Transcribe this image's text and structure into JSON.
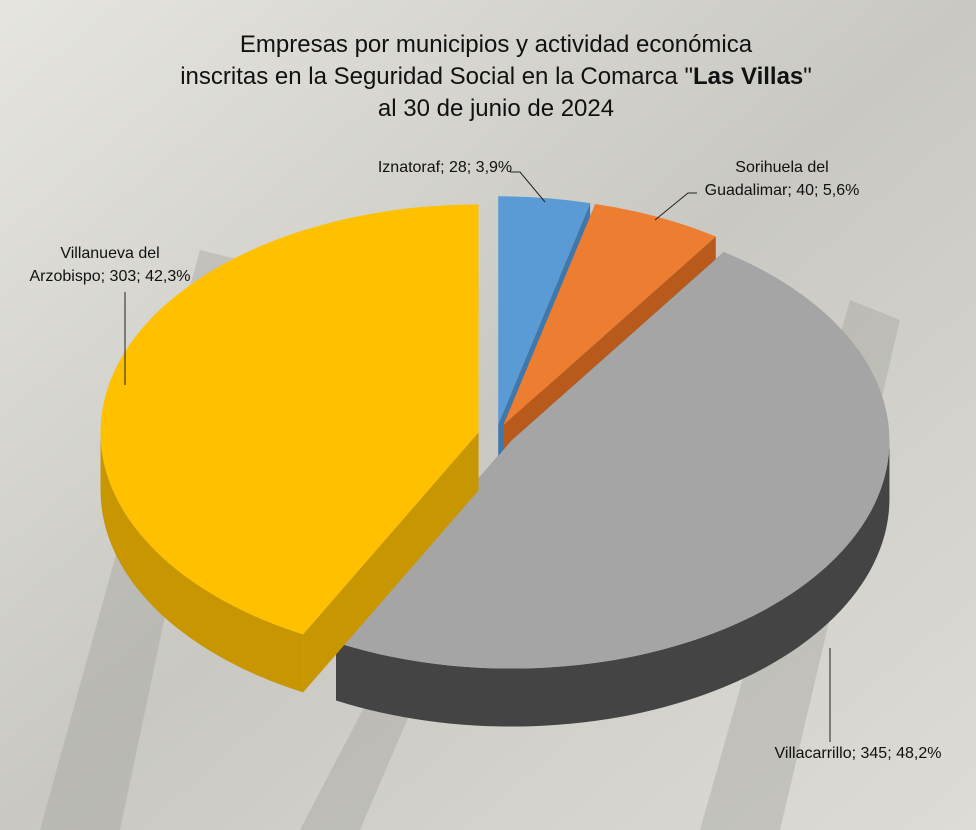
{
  "chart_data": {
    "type": "pie3d",
    "title": {
      "line1": "Empresas por municipios y actividad económica",
      "line2": "inscritas en la Seguridad Social en la Comarca \"",
      "highlight": "Las Villas",
      "line2_end": "\"",
      "line3": "al 30 de junio de 2024"
    },
    "values": [
      28,
      40,
      345,
      303
    ],
    "value_labels": [
      [
        "Iznatoraf; 28; 3,9%"
      ],
      [
        "Sorihuela del",
        "Guadalimar; 40; 5,6%"
      ],
      [
        "Villacarrillo; 345; 48,2%"
      ],
      [
        "Villanueva del",
        "Arzobispo; 303; 42,3%"
      ]
    ],
    "colors": [
      "#5b9bd5",
      "#ed7d31",
      "#a5a5a5",
      "#ffc000"
    ],
    "side_colors": [
      "#3f78ad",
      "#b85a1c",
      "#444444",
      "#c89600"
    ]
  }
}
